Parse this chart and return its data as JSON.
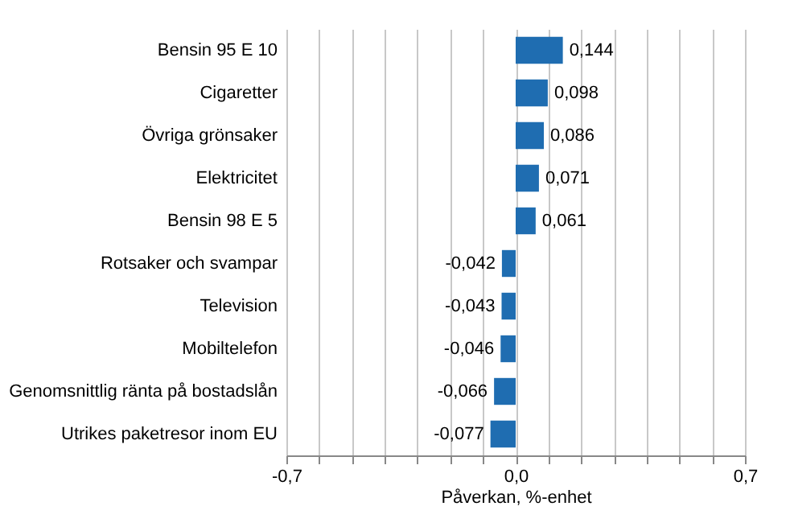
{
  "chart_data": {
    "type": "bar",
    "orientation": "horizontal",
    "xlabel": "Påverkan, %-enhet",
    "categories": [
      "Bensin 95 E 10",
      "Cigaretter",
      "Övriga grönsaker",
      "Elektricitet",
      "Bensin 98 E 5",
      "Rotsaker och svampar",
      "Television",
      "Mobiltelefon",
      "Genomsnittlig ränta på bostadslån",
      "Utrikes paketresor inom EU"
    ],
    "values": [
      0.144,
      0.098,
      0.086,
      0.071,
      0.061,
      -0.042,
      -0.043,
      -0.046,
      -0.066,
      -0.077
    ],
    "value_labels": [
      "0,144",
      "0,098",
      "0,086",
      "0,071",
      "0,061",
      "-0,042",
      "-0,043",
      "-0,046",
      "-0,066",
      "-0,077"
    ],
    "color": "#1f6db1",
    "xlim": [
      -0.7,
      0.7
    ],
    "xticks": [
      {
        "value": -0.7,
        "label": "-0,7"
      },
      {
        "value": -0.6,
        "label": null
      },
      {
        "value": -0.5,
        "label": null
      },
      {
        "value": -0.4,
        "label": null
      },
      {
        "value": -0.3,
        "label": null
      },
      {
        "value": -0.2,
        "label": null
      },
      {
        "value": -0.1,
        "label": null
      },
      {
        "value": 0,
        "label": "0,0"
      },
      {
        "value": 0.1,
        "label": null
      },
      {
        "value": 0.2,
        "label": null
      },
      {
        "value": 0.3,
        "label": null
      },
      {
        "value": 0.4,
        "label": null
      },
      {
        "value": 0.5,
        "label": null
      },
      {
        "value": 0.6,
        "label": null
      },
      {
        "value": 0.7,
        "label": "0,7"
      }
    ],
    "grid": "x"
  }
}
